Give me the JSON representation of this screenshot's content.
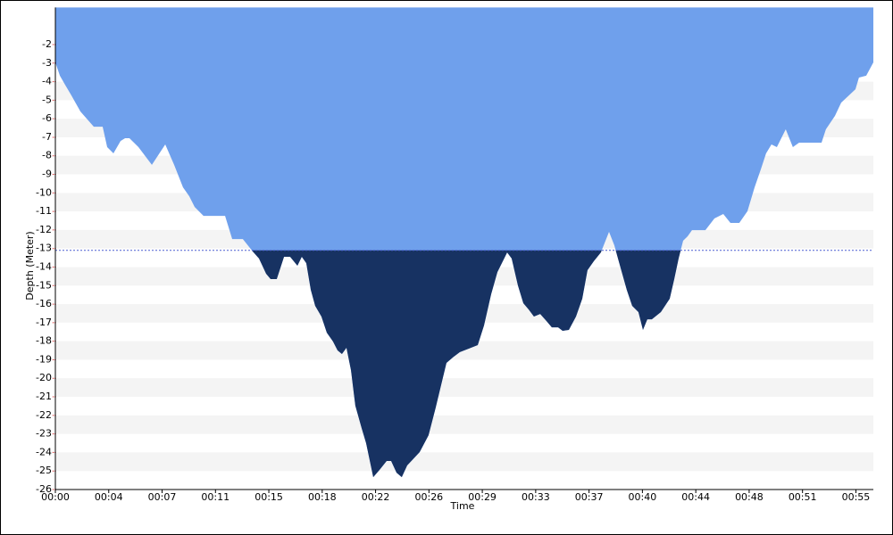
{
  "chart_data": {
    "type": "area",
    "x_label": "Time",
    "y_label": "Depth (Meter)",
    "color": "#6fa0ec",
    "threshold": -13.1,
    "threshold_color": "#173262",
    "xlim": [
      0,
      56.2
    ],
    "ylim": [
      -26,
      0
    ],
    "xticks": [
      {
        "value": 0,
        "label": "00:00"
      },
      {
        "value": 3.667,
        "label": "00:04"
      },
      {
        "value": 7.333,
        "label": "00:07"
      },
      {
        "value": 11,
        "label": "00:11"
      },
      {
        "value": 14.667,
        "label": "00:15"
      },
      {
        "value": 18.333,
        "label": "00:18"
      },
      {
        "value": 22,
        "label": "00:22"
      },
      {
        "value": 25.667,
        "label": "00:26"
      },
      {
        "value": 29.333,
        "label": "00:29"
      },
      {
        "value": 33,
        "label": "00:33"
      },
      {
        "value": 36.667,
        "label": "00:37"
      },
      {
        "value": 40.333,
        "label": "00:40"
      },
      {
        "value": 44,
        "label": "00:44"
      },
      {
        "value": 47.667,
        "label": "00:48"
      },
      {
        "value": 51.333,
        "label": "00:51"
      },
      {
        "value": 55,
        "label": "00:55"
      }
    ],
    "yticks": [
      -2,
      -3,
      -4,
      -5,
      -6,
      -7,
      -8,
      -9,
      -10,
      -11,
      -12,
      -13,
      -14,
      -15,
      -16,
      -17,
      -18,
      -19,
      -20,
      -21,
      -22,
      -23,
      -24,
      -25,
      -26
    ],
    "x": [
      0.0,
      0.31,
      0.67,
      1.1,
      1.72,
      2.64,
      3.25,
      3.56,
      3.99,
      4.48,
      4.79,
      5.09,
      5.71,
      6.63,
      7.55,
      8.16,
      8.77,
      9.2,
      9.57,
      10.18,
      11.66,
      12.15,
      12.88,
      13.56,
      13.99,
      14.48,
      14.79,
      15.21,
      15.71,
      16.13,
      16.63,
      16.93,
      17.24,
      17.55,
      17.85,
      18.28,
      18.65,
      19.08,
      19.39,
      19.69,
      20.0,
      20.31,
      20.61,
      21.04,
      21.35,
      21.84,
      22.27,
      22.76,
      23.07,
      23.44,
      23.8,
      24.17,
      25.03,
      25.64,
      26.13,
      26.5,
      26.87,
      27.36,
      27.79,
      28.4,
      29.02,
      29.45,
      29.94,
      30.37,
      30.74,
      31.04,
      31.35,
      31.78,
      32.15,
      32.52,
      32.88,
      33.31,
      33.74,
      34.11,
      34.54,
      34.85,
      35.28,
      35.77,
      36.2,
      36.56,
      36.99,
      37.48,
      38.04,
      38.4,
      38.83,
      39.26,
      39.63,
      40.06,
      40.37,
      40.67,
      40.98,
      41.6,
      42.21,
      42.52,
      42.82,
      43.13,
      43.44,
      43.74,
      44.66,
      45.28,
      45.89,
      46.38,
      46.99,
      47.55,
      48.04,
      48.47,
      48.83,
      49.2,
      49.57,
      50.18,
      50.67,
      51.1,
      51.53,
      52.64,
      52.94,
      53.56,
      53.99,
      54.97,
      55.21,
      55.71,
      56.2
    ],
    "y": [
      -2.96,
      -3.68,
      -4.17,
      -4.74,
      -5.61,
      -6.43,
      -6.43,
      -7.53,
      -7.87,
      -7.2,
      -7.05,
      -7.05,
      -7.53,
      -8.49,
      -7.39,
      -8.49,
      -9.7,
      -10.18,
      -10.76,
      -11.24,
      -11.24,
      -12.49,
      -12.49,
      -13.16,
      -13.54,
      -14.36,
      -14.65,
      -14.65,
      -13.45,
      -13.45,
      -13.93,
      -13.45,
      -13.79,
      -15.23,
      -16.09,
      -16.67,
      -17.54,
      -18.02,
      -18.5,
      -18.69,
      -18.35,
      -19.56,
      -21.48,
      -22.68,
      -23.5,
      -25.33,
      -24.94,
      -24.46,
      -24.46,
      -25.09,
      -25.33,
      -24.7,
      -23.98,
      -23.07,
      -21.58,
      -20.37,
      -19.17,
      -18.84,
      -18.59,
      -18.4,
      -18.21,
      -17.15,
      -15.47,
      -14.27,
      -13.69,
      -13.21,
      -13.54,
      -14.99,
      -15.95,
      -16.29,
      -16.67,
      -16.53,
      -16.91,
      -17.25,
      -17.25,
      -17.44,
      -17.39,
      -16.67,
      -15.71,
      -14.17,
      -13.69,
      -13.21,
      -12.1,
      -12.82,
      -14.03,
      -15.23,
      -16.09,
      -16.43,
      -17.39,
      -16.82,
      -16.82,
      -16.43,
      -15.71,
      -14.65,
      -13.54,
      -12.58,
      -12.34,
      -12.01,
      -12.01,
      -11.38,
      -11.14,
      -11.62,
      -11.62,
      -10.99,
      -9.7,
      -8.73,
      -7.87,
      -7.39,
      -7.53,
      -6.57,
      -7.53,
      -7.29,
      -7.29,
      -7.29,
      -6.57,
      -5.85,
      -5.13,
      -4.41,
      -3.78,
      -3.68,
      -2.96
    ]
  }
}
